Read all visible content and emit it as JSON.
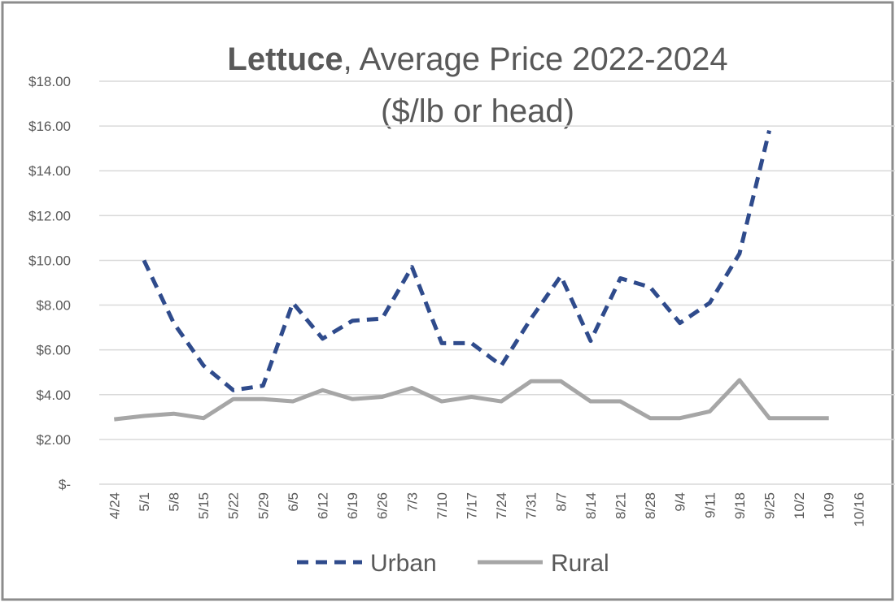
{
  "chart_data": {
    "type": "line",
    "title": {
      "bold": "Lettuce",
      "rest": ", Average Price 2022-2024",
      "line2": "($/lb or head)"
    },
    "categories": [
      "4/24",
      "5/1",
      "5/8",
      "5/15",
      "5/22",
      "5/29",
      "6/5",
      "6/12",
      "6/19",
      "6/26",
      "7/3",
      "7/10",
      "7/17",
      "7/24",
      "7/31",
      "8/7",
      "8/14",
      "8/21",
      "8/28",
      "9/4",
      "9/11",
      "9/18",
      "9/25",
      "10/2",
      "10/9",
      "10/16"
    ],
    "series": [
      {
        "name": "Urban",
        "color": "#2f4b8c",
        "dashed": true,
        "values": [
          null,
          10.0,
          7.2,
          5.3,
          4.2,
          4.4,
          8.1,
          6.5,
          7.3,
          7.4,
          9.7,
          6.3,
          6.3,
          5.3,
          7.4,
          9.3,
          6.4,
          9.2,
          8.8,
          7.2,
          8.1,
          10.3,
          15.8,
          null,
          null,
          null
        ]
      },
      {
        "name": "Rural",
        "color": "#a6a6a6",
        "dashed": false,
        "values": [
          2.9,
          3.05,
          3.15,
          2.95,
          3.8,
          3.8,
          3.7,
          4.2,
          3.8,
          3.9,
          4.3,
          3.7,
          3.9,
          3.7,
          4.6,
          4.6,
          3.7,
          3.7,
          2.95,
          2.95,
          3.25,
          4.65,
          2.95,
          2.95,
          2.95,
          null
        ]
      }
    ],
    "ylim": [
      0,
      18
    ],
    "yticks": [
      {
        "value": 0,
        "label": "$-"
      },
      {
        "value": 2,
        "label": "$2.00"
      },
      {
        "value": 4,
        "label": "$4.00"
      },
      {
        "value": 6,
        "label": "$6.00"
      },
      {
        "value": 8,
        "label": "$8.00"
      },
      {
        "value": 10,
        "label": "$10.00"
      },
      {
        "value": 12,
        "label": "$12.00"
      },
      {
        "value": 14,
        "label": "$14.00"
      },
      {
        "value": 16,
        "label": "$16.00"
      },
      {
        "value": 18,
        "label": "$18.00"
      }
    ],
    "grid": true,
    "legend": "bottom"
  }
}
